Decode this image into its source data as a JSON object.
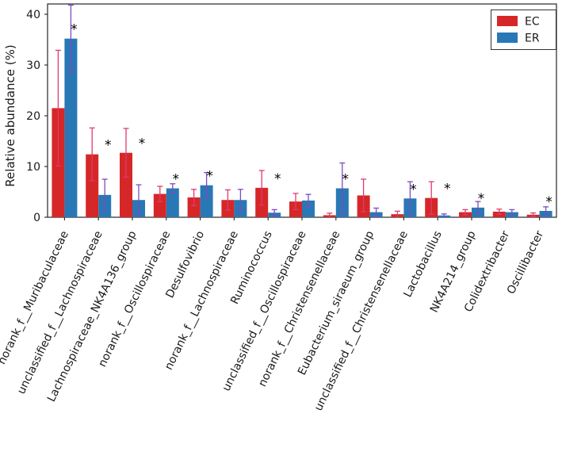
{
  "chart_data": {
    "type": "bar",
    "title": "",
    "xlabel": "",
    "ylabel": "Relative abundance (%)",
    "ylim": [
      0,
      42
    ],
    "yticks": [
      0,
      10,
      20,
      30,
      40
    ],
    "grid": false,
    "legend_position": "upper right",
    "significance_marker": "*",
    "categories": [
      "norank_f__Muribaculaceae",
      "unclassified_f__Lachnospiraceae",
      "Lachnospiraceae_NK4A136_group",
      "norank_f__Oscillospiraceae",
      "Desulfovibrio",
      "norank_f__Lachnospiraceae",
      "Ruminococcus",
      "unclassified_f__Oscillospiraceae",
      "norank_f__Christensenellaceae",
      "Eubacterium_siraeum_group",
      "unclassified_f__Christensenellaceae",
      "Lactobacillus",
      "NK4A214_group",
      "Colidextribacter",
      "Oscillibacter"
    ],
    "series": [
      {
        "name": "EC",
        "color": "#d62728",
        "error_color": "#e03a6e",
        "values": [
          21.5,
          12.4,
          12.7,
          4.6,
          3.9,
          3.4,
          5.8,
          3.1,
          0.4,
          4.3,
          0.6,
          3.8,
          1.0,
          1.1,
          0.5
        ],
        "errors": [
          11.4,
          5.2,
          4.8,
          1.5,
          1.6,
          2.0,
          3.4,
          1.6,
          0.4,
          3.2,
          0.6,
          3.2,
          0.5,
          0.5,
          0.35
        ]
      },
      {
        "name": "ER",
        "color": "#2878b5",
        "error_color": "#7d4bc0",
        "values": [
          35.2,
          4.4,
          3.4,
          5.7,
          6.3,
          3.4,
          0.9,
          3.3,
          5.7,
          1.0,
          3.7,
          0.35,
          1.9,
          1.0,
          1.25
        ],
        "errors": [
          6.6,
          3.1,
          3.0,
          0.9,
          2.5,
          2.1,
          0.6,
          1.2,
          5.0,
          0.8,
          3.3,
          0.3,
          1.2,
          0.5,
          0.8
        ]
      }
    ],
    "significance": [
      true,
      true,
      true,
      true,
      true,
      false,
      true,
      false,
      true,
      false,
      true,
      true,
      true,
      false,
      true
    ]
  }
}
